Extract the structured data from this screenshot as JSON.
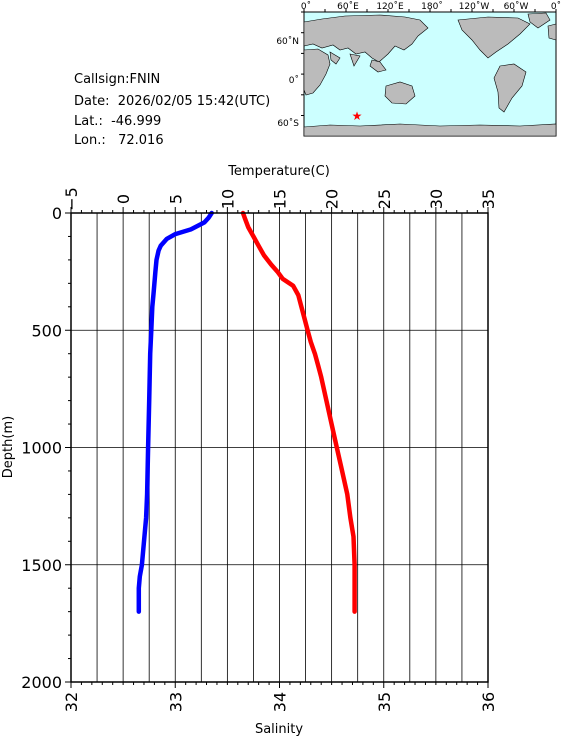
{
  "station": {
    "callsign": "Callsign:FNIN",
    "date": "Date:  2026/02/05 15:42(UTC)",
    "lat": "Lat.:  -46.999",
    "lon": "Lon.:   72.016"
  },
  "map": {
    "lon_labels": [
      "0˚",
      "60˚E",
      "120˚E",
      "180˚",
      "120˚W",
      "60˚W",
      "0˚"
    ],
    "lat_labels": [
      "60˚N",
      "0˚",
      "60˚S"
    ],
    "ocean_color": "#ccffff",
    "land_color": "#bbbbbb",
    "marker_color": "#ff0000",
    "marker_icon": "star-icon",
    "marker_lon": 72.016,
    "marker_lat": -46.999
  },
  "chart_data": {
    "type": "line",
    "ylabel": "Depth(m)",
    "ylim": [
      0,
      2000
    ],
    "yticks": [
      "0",
      "500",
      "1000",
      "1500",
      "2000"
    ],
    "top_axis": {
      "label": "Temperature(C)",
      "lim": [
        -5,
        35
      ],
      "ticks": [
        "−5",
        "0",
        "5",
        "10",
        "15",
        "20",
        "25",
        "30",
        "35"
      ]
    },
    "bottom_axis": {
      "label": "Salinity",
      "lim": [
        32,
        36
      ],
      "ticks": [
        "32",
        "33",
        "34",
        "35",
        "36"
      ]
    },
    "grid": true,
    "series": [
      {
        "axis": "temperature",
        "color": "#ff0000",
        "points": [
          [
            11.5,
            0
          ],
          [
            11.7,
            25
          ],
          [
            12.0,
            60
          ],
          [
            12.5,
            100
          ],
          [
            13.0,
            140
          ],
          [
            13.5,
            180
          ],
          [
            14.2,
            220
          ],
          [
            14.8,
            250
          ],
          [
            15.3,
            280
          ],
          [
            16.3,
            310
          ],
          [
            16.8,
            350
          ],
          [
            17.1,
            400
          ],
          [
            17.4,
            450
          ],
          [
            17.7,
            500
          ],
          [
            18.0,
            550
          ],
          [
            18.4,
            600
          ],
          [
            18.7,
            650
          ],
          [
            19.0,
            700
          ],
          [
            19.5,
            800
          ],
          [
            20.0,
            900
          ],
          [
            20.5,
            1000
          ],
          [
            21.0,
            1100
          ],
          [
            21.5,
            1200
          ],
          [
            21.8,
            1300
          ],
          [
            22.1,
            1380
          ],
          [
            22.2,
            1500
          ],
          [
            22.2,
            1600
          ],
          [
            22.2,
            1700
          ]
        ]
      },
      {
        "axis": "salinity",
        "color": "#0000ff",
        "points": [
          [
            33.35,
            0
          ],
          [
            33.32,
            20
          ],
          [
            33.28,
            40
          ],
          [
            33.15,
            70
          ],
          [
            33.0,
            90
          ],
          [
            32.92,
            110
          ],
          [
            32.86,
            140
          ],
          [
            32.84,
            160
          ],
          [
            32.82,
            200
          ],
          [
            32.81,
            250
          ],
          [
            32.8,
            300
          ],
          [
            32.79,
            350
          ],
          [
            32.78,
            400
          ],
          [
            32.77,
            500
          ],
          [
            32.76,
            600
          ],
          [
            32.75,
            800
          ],
          [
            32.74,
            1000
          ],
          [
            32.73,
            1200
          ],
          [
            32.72,
            1300
          ],
          [
            32.7,
            1400
          ],
          [
            32.68,
            1500
          ],
          [
            32.66,
            1550
          ],
          [
            32.65,
            1600
          ],
          [
            32.65,
            1700
          ]
        ]
      }
    ]
  }
}
